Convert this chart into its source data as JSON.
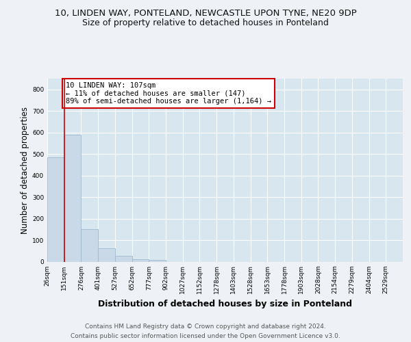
{
  "title_line1": "10, LINDEN WAY, PONTELAND, NEWCASTLE UPON TYNE, NE20 9DP",
  "title_line2": "Size of property relative to detached houses in Ponteland",
  "xlabel": "Distribution of detached houses by size in Ponteland",
  "ylabel": "Number of detached properties",
  "bar_labels": [
    "26sqm",
    "151sqm",
    "276sqm",
    "401sqm",
    "527sqm",
    "652sqm",
    "777sqm",
    "902sqm",
    "1027sqm",
    "1152sqm",
    "1278sqm",
    "1403sqm",
    "1528sqm",
    "1653sqm",
    "1778sqm",
    "1903sqm",
    "2028sqm",
    "2154sqm",
    "2279sqm",
    "2404sqm",
    "2529sqm"
  ],
  "bar_values": [
    485,
    590,
    150,
    63,
    27,
    10,
    7,
    0,
    0,
    0,
    0,
    0,
    0,
    0,
    0,
    0,
    0,
    0,
    0,
    0,
    0
  ],
  "bar_color": "#c9d9e8",
  "bar_edge_color": "#a0b8cc",
  "vline_x": 1.0,
  "vline_color": "#cc0000",
  "annotation_text": "10 LINDEN WAY: 107sqm\n← 11% of detached houses are smaller (147)\n89% of semi-detached houses are larger (1,164) →",
  "annotation_box_color": "#ffffff",
  "annotation_box_edge": "#cc0000",
  "ylim": [
    0,
    850
  ],
  "yticks": [
    0,
    100,
    200,
    300,
    400,
    500,
    600,
    700,
    800
  ],
  "footer_line1": "Contains HM Land Registry data © Crown copyright and database right 2024.",
  "footer_line2": "Contains public sector information licensed under the Open Government Licence v3.0.",
  "bg_color": "#eef2f6",
  "plot_bg_color": "#d8e6f0",
  "grid_color": "#ffffff",
  "title_fontsize": 9.5,
  "subtitle_fontsize": 9,
  "axis_label_fontsize": 8.5,
  "tick_fontsize": 6.5,
  "footer_fontsize": 6.5,
  "annot_fontsize": 7.5
}
